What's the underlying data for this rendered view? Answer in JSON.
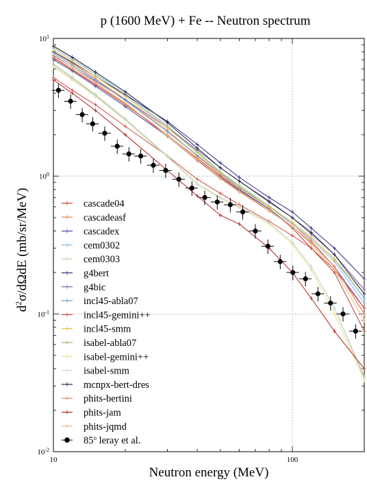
{
  "chart_data": {
    "type": "line",
    "title": "p (1600 MeV) + Fe -- Neutron spectrum",
    "xlabel": "Neutron energy (MeV)",
    "ylabel_parts": {
      "d1": "d",
      "sup1": "2",
      "mid": "σ/dΩdE (mb/sr/MeV)"
    },
    "x_scale": "log",
    "y_scale": "log",
    "xlim": [
      10,
      200
    ],
    "ylim": [
      0.01,
      10
    ],
    "x_ticks": [
      {
        "value": 10,
        "label": "10"
      },
      {
        "value": 100,
        "label": "100"
      }
    ],
    "y_ticks": [
      {
        "value": 0.01,
        "base": "10",
        "exp": "-2"
      },
      {
        "value": 0.1,
        "base": "10",
        "exp": "-1"
      },
      {
        "value": 1,
        "base": "10",
        "exp": "0"
      },
      {
        "value": 10,
        "base": "10",
        "exp": "1"
      }
    ],
    "grid": true,
    "legend_position": "bottom-left",
    "series": [
      {
        "name": "cascade04",
        "color": "#c0392b",
        "x": [
          10,
          12,
          15,
          20,
          30,
          40,
          50,
          60,
          80,
          100,
          120,
          150,
          200
        ],
        "y": [
          7.2,
          5.9,
          4.6,
          3.3,
          2.0,
          1.35,
          1.0,
          0.8,
          0.58,
          0.42,
          0.3,
          0.2,
          0.075
        ]
      },
      {
        "name": "cascadeasf",
        "color": "#e57b4a",
        "x": [
          10,
          12,
          15,
          20,
          30,
          40,
          50,
          60,
          80,
          100,
          120,
          150,
          200
        ],
        "y": [
          8.0,
          6.6,
          5.1,
          3.6,
          2.15,
          1.4,
          1.02,
          0.82,
          0.6,
          0.45,
          0.34,
          0.22,
          0.1
        ]
      },
      {
        "name": "cascadex",
        "color": "#4a4aa8",
        "x": [
          10,
          12,
          15,
          20,
          30,
          40,
          50,
          60,
          80,
          100,
          120,
          150,
          200
        ],
        "y": [
          7.0,
          5.8,
          4.5,
          3.2,
          1.95,
          1.3,
          0.98,
          0.79,
          0.58,
          0.43,
          0.33,
          0.22,
          0.11
        ]
      },
      {
        "name": "cem0302",
        "color": "#8ab4e0",
        "x": [
          10,
          12,
          15,
          20,
          30,
          40,
          50,
          60,
          80,
          100,
          120,
          150,
          200
        ],
        "y": [
          8.5,
          7.0,
          5.5,
          3.9,
          2.3,
          1.5,
          1.07,
          0.85,
          0.6,
          0.45,
          0.35,
          0.24,
          0.12
        ]
      },
      {
        "name": "cem0303",
        "color": "#b8d8a8",
        "x": [
          10,
          12,
          15,
          20,
          30,
          40,
          50,
          60,
          80,
          100,
          120,
          150,
          200
        ],
        "y": [
          8.7,
          7.2,
          5.6,
          4.0,
          2.35,
          1.52,
          1.08,
          0.86,
          0.61,
          0.46,
          0.36,
          0.25,
          0.13
        ]
      },
      {
        "name": "g4bert",
        "color": "#2c2c7a",
        "x": [
          10,
          12,
          15,
          20,
          30,
          40,
          50,
          60,
          80,
          100,
          120,
          150,
          200
        ],
        "y": [
          8.0,
          6.7,
          5.3,
          3.9,
          2.5,
          1.7,
          1.25,
          0.98,
          0.7,
          0.55,
          0.42,
          0.3,
          0.18
        ]
      },
      {
        "name": "g4bic",
        "color": "#7a5aa0",
        "x": [
          10,
          12,
          15,
          20,
          30,
          40,
          50,
          60,
          80,
          100,
          120,
          150,
          200
        ],
        "y": [
          7.5,
          6.2,
          4.9,
          3.6,
          2.25,
          1.55,
          1.15,
          0.92,
          0.66,
          0.5,
          0.38,
          0.27,
          0.15
        ]
      },
      {
        "name": "incl45-abla07",
        "color": "#5aa0c8",
        "x": [
          10,
          12,
          15,
          20,
          30,
          40,
          50,
          60,
          80,
          100,
          120,
          150,
          200
        ],
        "y": [
          7.8,
          6.4,
          5.0,
          3.55,
          2.1,
          1.42,
          1.05,
          0.82,
          0.6,
          0.46,
          0.36,
          0.25,
          0.13
        ]
      },
      {
        "name": "incl45-gemini++",
        "color": "#d84a3a",
        "x": [
          10,
          12,
          15,
          20,
          30,
          40,
          50,
          60,
          80,
          100,
          120,
          150,
          200
        ],
        "y": [
          5.2,
          4.2,
          3.3,
          2.3,
          1.4,
          0.95,
          0.75,
          0.62,
          0.47,
          0.37,
          0.3,
          0.21,
          0.11
        ]
      },
      {
        "name": "incl45-smm",
        "color": "#e0c040",
        "x": [
          10,
          12,
          15,
          20,
          30,
          40,
          50,
          60,
          80,
          100,
          120,
          150,
          200
        ],
        "y": [
          8.2,
          6.8,
          5.3,
          3.8,
          2.25,
          1.48,
          1.06,
          0.84,
          0.6,
          0.46,
          0.36,
          0.25,
          0.14
        ]
      },
      {
        "name": "isabel-abla07",
        "color": "#a0b860",
        "x": [
          10,
          12,
          15,
          20,
          30,
          40,
          50,
          60,
          80,
          100,
          120,
          150,
          200
        ],
        "y": [
          6.5,
          5.2,
          3.9,
          2.6,
          1.4,
          0.88,
          0.7,
          0.6,
          0.46,
          0.33,
          0.22,
          0.11,
          0.035
        ]
      },
      {
        "name": "isabel-gemini++",
        "color": "#f0e080",
        "x": [
          10,
          12,
          15,
          20,
          30,
          40,
          50,
          60,
          80,
          100,
          120,
          150,
          200
        ],
        "y": [
          6.2,
          5.0,
          3.8,
          2.55,
          1.38,
          0.87,
          0.69,
          0.59,
          0.45,
          0.32,
          0.21,
          0.1,
          0.033
        ]
      },
      {
        "name": "isabel-smm",
        "color": "#c8d8f0",
        "x": [
          10,
          12,
          15,
          20,
          30,
          40,
          50,
          60,
          80,
          100,
          120,
          150,
          200
        ],
        "y": [
          6.3,
          5.1,
          3.85,
          2.58,
          1.39,
          0.88,
          0.7,
          0.6,
          0.46,
          0.33,
          0.22,
          0.11,
          0.034
        ]
      },
      {
        "name": "mcnpx-bert-dres",
        "color": "#1a1a4a",
        "x": [
          10,
          12,
          15,
          20,
          30,
          40,
          50,
          60,
          80,
          100,
          120,
          150,
          200
        ],
        "y": [
          8.8,
          7.3,
          5.7,
          4.1,
          2.45,
          1.6,
          1.15,
          0.92,
          0.65,
          0.5,
          0.39,
          0.27,
          0.14
        ]
      },
      {
        "name": "phits-bertini",
        "color": "#e08060",
        "x": [
          10,
          12,
          15,
          20,
          30,
          40,
          50,
          60,
          80,
          100,
          120,
          150,
          200
        ],
        "y": [
          7.3,
          6.0,
          4.7,
          3.35,
          1.95,
          1.3,
          0.96,
          0.77,
          0.56,
          0.43,
          0.33,
          0.22,
          0.1
        ]
      },
      {
        "name": "phits-jam",
        "color": "#b02020",
        "x": [
          10,
          12,
          15,
          20,
          30,
          40,
          50,
          60,
          80,
          100,
          120,
          150,
          200
        ],
        "y": [
          5.0,
          4.0,
          3.0,
          2.0,
          1.1,
          0.72,
          0.52,
          0.45,
          0.3,
          0.2,
          0.13,
          0.075,
          0.04
        ]
      },
      {
        "name": "phits-jqmd",
        "color": "#e8b878",
        "x": [
          10,
          12,
          15,
          20,
          30,
          40,
          50,
          60,
          80,
          100,
          120,
          150,
          200
        ],
        "y": [
          7.6,
          6.2,
          4.8,
          3.4,
          2.0,
          1.33,
          0.97,
          0.78,
          0.57,
          0.43,
          0.32,
          0.21,
          0.09
        ]
      }
    ],
    "experiment": {
      "name_base": "85",
      "name_sup": "o",
      "name_rest": " leray et al.",
      "color": "#000000",
      "x": [
        10.5,
        11.8,
        13.2,
        14.6,
        16.4,
        18.5,
        20.7,
        23.2,
        26.2,
        29.5,
        33.5,
        38.0,
        43.0,
        48.5,
        55.0,
        62.0,
        70.0,
        79.0,
        89.0,
        100.5,
        113.5,
        128.0,
        144.5,
        163.0,
        184.0
      ],
      "y": [
        4.2,
        3.5,
        2.8,
        2.4,
        2.05,
        1.65,
        1.45,
        1.4,
        1.2,
        1.1,
        0.95,
        0.82,
        0.7,
        0.65,
        0.62,
        0.55,
        0.4,
        0.31,
        0.24,
        0.2,
        0.18,
        0.14,
        0.12,
        0.1,
        0.075
      ],
      "yerr_rel": 0.12,
      "xerr_rel": 0.06
    }
  }
}
